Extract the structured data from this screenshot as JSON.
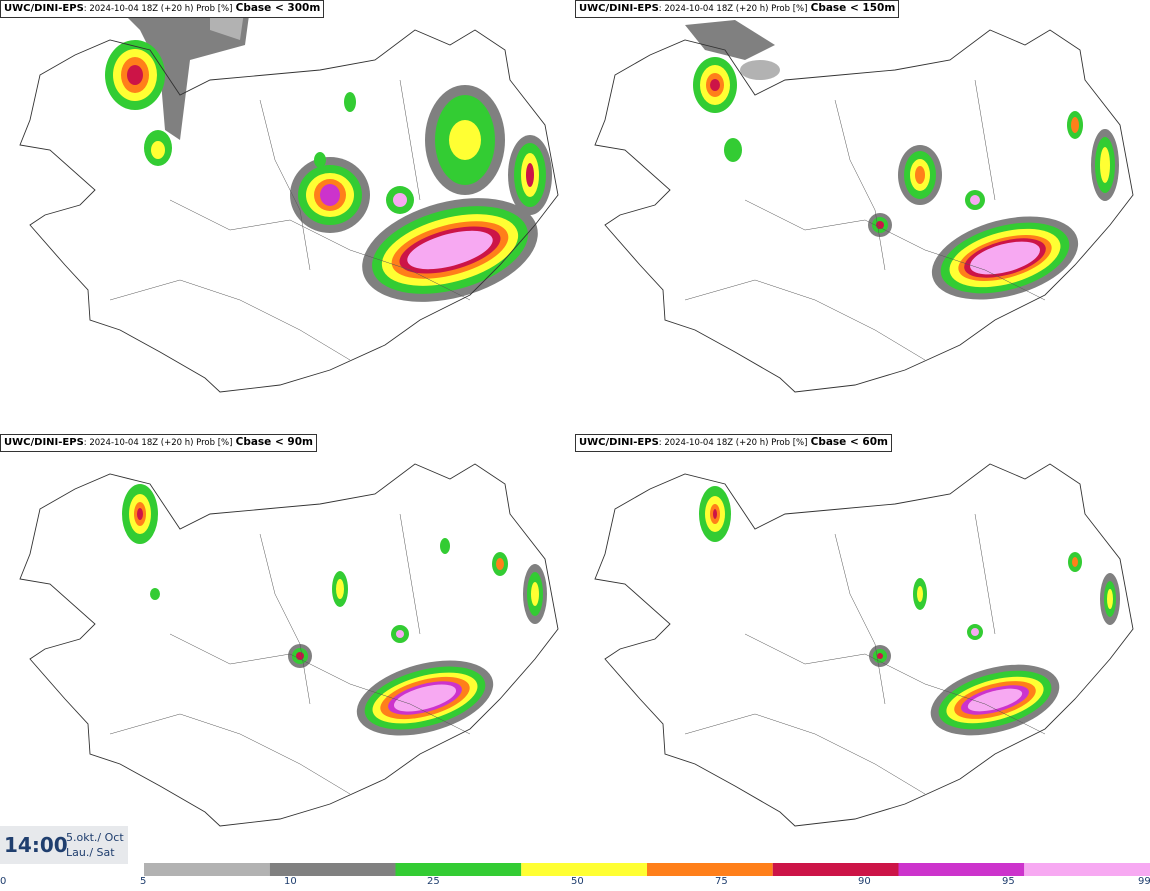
{
  "panels": [
    {
      "model": "UWC/DINI-EPS",
      "run": ": 2024-10-04 18Z (+20 h) Prob [%]",
      "variable": "Cbase < 300m"
    },
    {
      "model": "UWC/DINI-EPS",
      "run": ": 2024-10-04 18Z (+20 h) Prob [%]",
      "variable": "Cbase < 150m"
    },
    {
      "model": "UWC/DINI-EPS",
      "run": ": 2024-10-04 18Z (+20 h) Prob [%]",
      "variable": "Cbase < 90m"
    },
    {
      "model": "UWC/DINI-EPS",
      "run": ": 2024-10-04 18Z (+20 h) Prob [%]",
      "variable": "Cbase < 60m"
    }
  ],
  "valid_time": {
    "hour": "14:00",
    "date": "5.okt./ Oct",
    "weekday": "Lau./ Sat"
  },
  "legend": {
    "ticks": [
      "0",
      "5",
      "10",
      "25",
      "50",
      "75",
      "90",
      "95",
      "99"
    ],
    "colors": [
      "#b2b2b2",
      "#808080",
      "#33cc33",
      "#ffff33",
      "#ff7f1a",
      "#cc1447",
      "#cc33cc",
      "#f7a9f2"
    ]
  }
}
